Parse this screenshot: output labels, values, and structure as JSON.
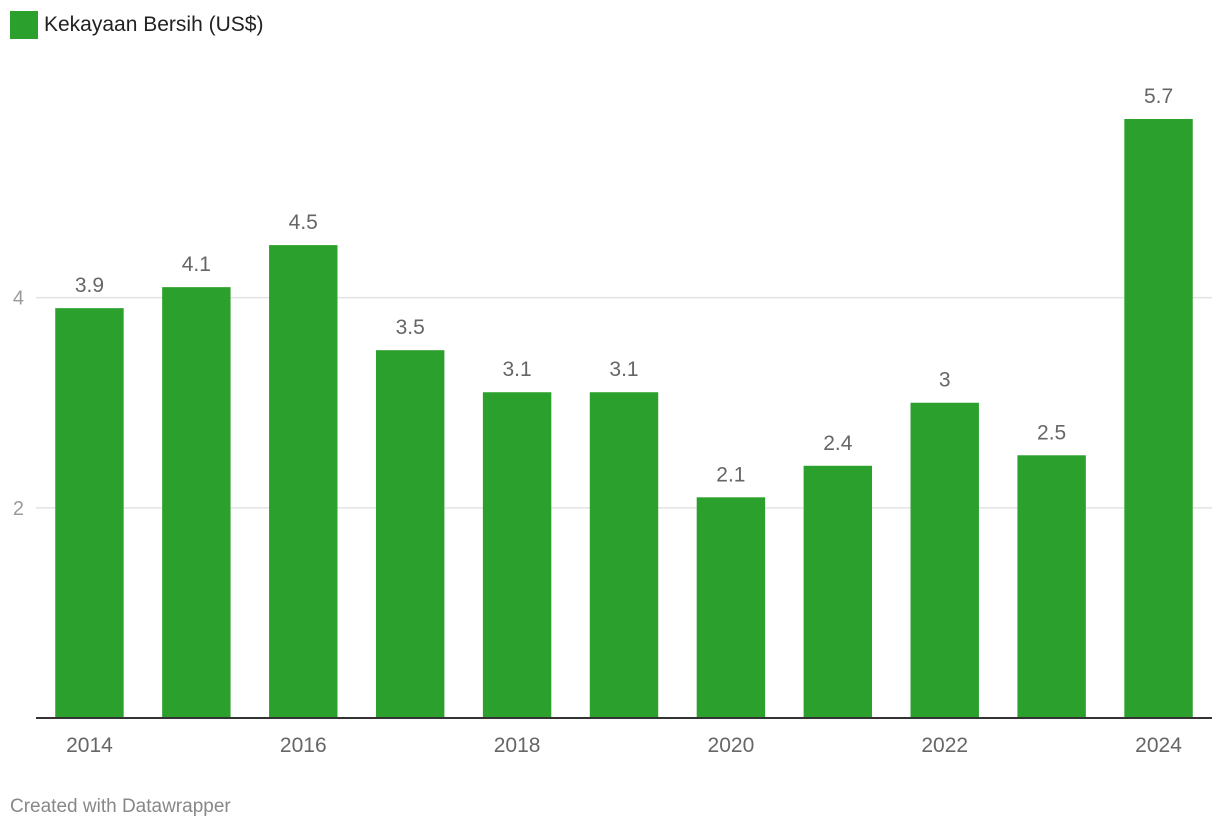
{
  "chart_data": {
    "type": "bar",
    "legend": [
      {
        "label": "Kekayaan Bersih (US$)",
        "color": "#2ca02c"
      }
    ],
    "categories": [
      "2014",
      "2015",
      "2016",
      "2017",
      "2018",
      "2019",
      "2020",
      "2021",
      "2022",
      "2023",
      "2024"
    ],
    "x_tick_labels": [
      "2014",
      "2016",
      "2018",
      "2020",
      "2022",
      "2024"
    ],
    "series": [
      {
        "name": "Kekayaan Bersih (US$)",
        "values": [
          3.9,
          4.1,
          4.5,
          3.5,
          3.1,
          3.1,
          2.1,
          2.4,
          3.0,
          2.5,
          5.7
        ]
      }
    ],
    "data_labels": [
      "3.9",
      "4.1",
      "4.5",
      "3.5",
      "3.1",
      "3.1",
      "2.1",
      "2.4",
      "3",
      "2.5",
      "5.7"
    ],
    "y_ticks": [
      2,
      4
    ],
    "ylim": [
      0,
      5.7
    ],
    "grid": true,
    "legend_position": "top-left"
  },
  "footer": {
    "credit": "Created with Datawrapper"
  },
  "colors": {
    "bar": "#2ca02c",
    "grid": "#e3e3e3",
    "axis": "#333333",
    "tick_text": "#666666",
    "y_tick_text": "#9a9a9a",
    "label_text": "#666666"
  }
}
